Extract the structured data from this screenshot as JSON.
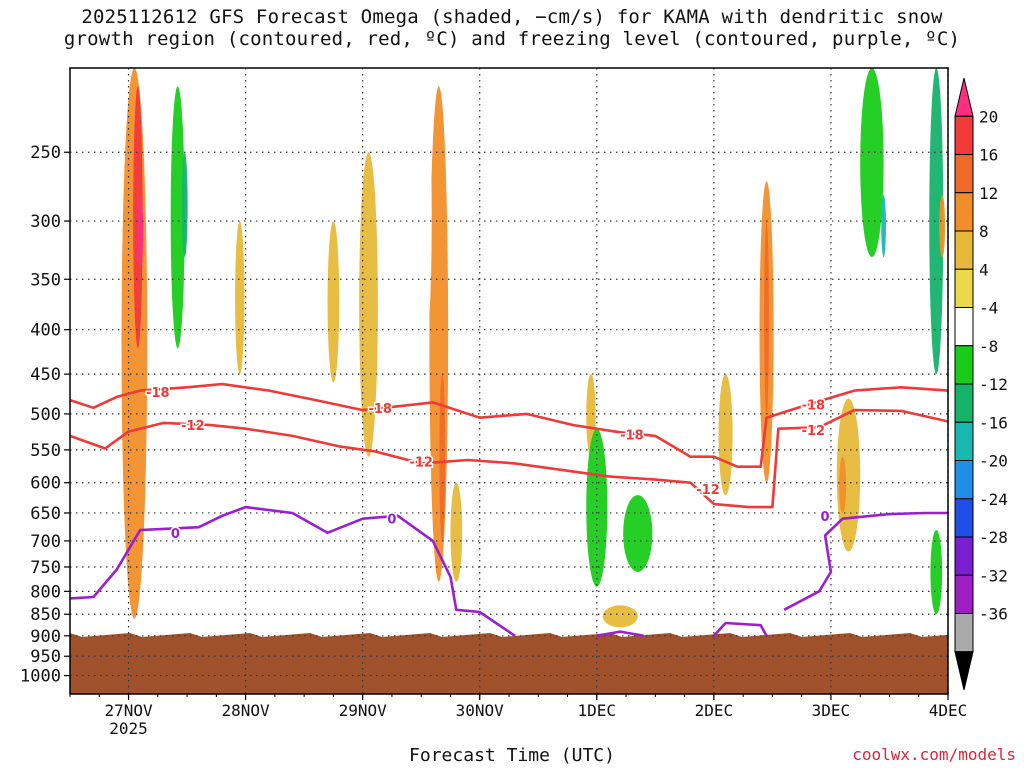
{
  "title": {
    "line1": "2025112612 GFS Forecast Omega (shaded, −cm/s) for KAMA with dendritic snow",
    "line2": "growth region (contoured, red, ºC) and freezing level (contoured, purple, ºC)"
  },
  "xlabel": "Forecast Time (UTC)",
  "credit": "coolwx.com/models",
  "chart_data": {
    "type": "heatmap",
    "xlabel": "Forecast Time (UTC)",
    "ylabel": "",
    "x_ticks": [
      {
        "label": "27NOV",
        "sub": "2025",
        "day": 1
      },
      {
        "label": "28NOV",
        "sub": "",
        "day": 2
      },
      {
        "label": "29NOV",
        "sub": "",
        "day": 3
      },
      {
        "label": "30NOV",
        "sub": "",
        "day": 4
      },
      {
        "label": "1DEC",
        "sub": "",
        "day": 5
      },
      {
        "label": "2DEC",
        "sub": "",
        "day": 6
      },
      {
        "label": "3DEC",
        "sub": "",
        "day": 7
      },
      {
        "label": "4DEC",
        "sub": "",
        "day": 8
      }
    ],
    "x_range_days": [
      0.5,
      8.0
    ],
    "y_ticks": [
      250,
      300,
      350,
      400,
      450,
      500,
      550,
      600,
      650,
      700,
      750,
      800,
      850,
      900,
      950,
      1000
    ],
    "y_range_hpa": [
      200,
      1050
    ],
    "y_scale": "log",
    "grid": "dotted",
    "colorbar": {
      "label_values": [
        20,
        16,
        12,
        8,
        4,
        -4,
        -8,
        -12,
        -16,
        -20,
        -24,
        -28,
        -32,
        -36
      ],
      "colors": [
        "#ff2f80",
        "#f23a3a",
        "#ef6a2a",
        "#f28e2a",
        "#e6b93a",
        "#ebd94a",
        "#ffffff",
        "#19cc19",
        "#15b36a",
        "#18b8b0",
        "#1e8fe6",
        "#1f4fe6",
        "#7a1fd0",
        "#9d1fc2",
        "#aaaaaa",
        "#000000"
      ]
    },
    "shading_regions": [
      {
        "x": 1.05,
        "p0": 200,
        "p1": 860,
        "w": 0.22,
        "value": 10
      },
      {
        "x": 1.08,
        "p0": 210,
        "p1": 420,
        "w": 0.08,
        "value": 18
      },
      {
        "x": 1.1,
        "p0": 280,
        "p1": 340,
        "w": 0.05,
        "value": 20
      },
      {
        "x": 0.85,
        "p0": 520,
        "p1": 830,
        "w": 0.12,
        "value": -6
      },
      {
        "x": 1.42,
        "p0": 210,
        "p1": 420,
        "w": 0.12,
        "value": -8
      },
      {
        "x": 1.48,
        "p0": 250,
        "p1": 330,
        "w": 0.05,
        "value": -14
      },
      {
        "x": 1.95,
        "p0": 300,
        "p1": 450,
        "w": 0.08,
        "value": 6
      },
      {
        "x": 2.3,
        "p0": 450,
        "p1": 560,
        "w": 0.08,
        "value": -6
      },
      {
        "x": 2.75,
        "p0": 300,
        "p1": 460,
        "w": 0.1,
        "value": 5
      },
      {
        "x": 2.9,
        "p0": 200,
        "p1": 360,
        "w": 0.08,
        "value": -6
      },
      {
        "x": 3.05,
        "p0": 250,
        "p1": 560,
        "w": 0.16,
        "value": 8
      },
      {
        "x": 3.35,
        "p0": 210,
        "p1": 600,
        "w": 0.1,
        "value": -6
      },
      {
        "x": 3.65,
        "p0": 210,
        "p1": 780,
        "w": 0.16,
        "value": 9
      },
      {
        "x": 3.68,
        "p0": 450,
        "p1": 700,
        "w": 0.05,
        "value": 16
      },
      {
        "x": 3.8,
        "p0": 600,
        "p1": 780,
        "w": 0.1,
        "value": 7
      },
      {
        "x": 3.55,
        "p0": 220,
        "p1": 400,
        "w": 0.08,
        "value": -6
      },
      {
        "x": 4.2,
        "p0": 400,
        "p1": 520,
        "w": 0.08,
        "value": -6
      },
      {
        "x": 4.6,
        "p0": 300,
        "p1": 560,
        "w": 0.06,
        "value": -6
      },
      {
        "x": 4.85,
        "p0": 200,
        "p1": 620,
        "w": 0.12,
        "value": -6
      },
      {
        "x": 4.95,
        "p0": 450,
        "p1": 560,
        "w": 0.08,
        "value": 6
      },
      {
        "x": 5.0,
        "p0": 520,
        "p1": 790,
        "w": 0.18,
        "value": -11
      },
      {
        "x": 5.35,
        "p0": 620,
        "p1": 760,
        "w": 0.25,
        "value": -9
      },
      {
        "x": 5.3,
        "p0": 200,
        "p1": 480,
        "w": 0.1,
        "value": -7
      },
      {
        "x": 5.55,
        "p0": 200,
        "p1": 420,
        "w": 0.08,
        "value": -7
      },
      {
        "x": 5.2,
        "p0": 830,
        "p1": 880,
        "w": 0.3,
        "value": 6
      },
      {
        "x": 6.1,
        "p0": 450,
        "p1": 620,
        "w": 0.12,
        "value": 6
      },
      {
        "x": 6.45,
        "p0": 270,
        "p1": 600,
        "w": 0.12,
        "value": 9
      },
      {
        "x": 6.45,
        "p0": 300,
        "p1": 500,
        "w": 0.04,
        "value": 13
      },
      {
        "x": 7.15,
        "p0": 480,
        "p1": 720,
        "w": 0.2,
        "value": 8
      },
      {
        "x": 7.1,
        "p0": 560,
        "p1": 650,
        "w": 0.06,
        "value": 12
      },
      {
        "x": 7.35,
        "p0": 200,
        "p1": 330,
        "w": 0.2,
        "value": -10
      },
      {
        "x": 7.45,
        "p0": 280,
        "p1": 330,
        "w": 0.04,
        "value": -18
      },
      {
        "x": 7.75,
        "p0": 380,
        "p1": 540,
        "w": 0.12,
        "value": -6
      },
      {
        "x": 7.9,
        "p0": 200,
        "p1": 450,
        "w": 0.12,
        "value": -12
      },
      {
        "x": 7.95,
        "p0": 280,
        "p1": 330,
        "w": 0.05,
        "value": 12
      },
      {
        "x": 7.9,
        "p0": 680,
        "p1": 850,
        "w": 0.1,
        "value": -10
      }
    ],
    "contours": [
      {
        "label": "-18",
        "color": "#ef3a3a",
        "points": [
          [
            0.5,
            482
          ],
          [
            0.7,
            492
          ],
          [
            0.9,
            478
          ],
          [
            1.1,
            470
          ],
          [
            1.5,
            466
          ],
          [
            1.8,
            462
          ],
          [
            2.2,
            470
          ],
          [
            2.6,
            482
          ],
          [
            3.0,
            495
          ],
          [
            3.3,
            490
          ],
          [
            3.6,
            485
          ],
          [
            4.0,
            505
          ],
          [
            4.4,
            500
          ],
          [
            4.8,
            515
          ],
          [
            5.2,
            525
          ],
          [
            5.5,
            530
          ],
          [
            5.8,
            560
          ],
          [
            6.0,
            560
          ],
          [
            6.2,
            575
          ],
          [
            6.4,
            575
          ],
          [
            6.45,
            505
          ],
          [
            6.8,
            488
          ],
          [
            7.2,
            470
          ],
          [
            7.6,
            466
          ],
          [
            8.0,
            470
          ]
        ]
      },
      {
        "label": "-12",
        "color": "#ef3a3a",
        "points": [
          [
            0.5,
            530
          ],
          [
            0.8,
            548
          ],
          [
            1.0,
            524
          ],
          [
            1.3,
            512
          ],
          [
            1.7,
            515
          ],
          [
            2.0,
            520
          ],
          [
            2.4,
            530
          ],
          [
            2.8,
            545
          ],
          [
            3.1,
            552
          ],
          [
            3.5,
            570
          ],
          [
            3.9,
            565
          ],
          [
            4.3,
            570
          ],
          [
            4.7,
            580
          ],
          [
            5.1,
            590
          ],
          [
            5.5,
            595
          ],
          [
            5.8,
            600
          ],
          [
            6.0,
            635
          ],
          [
            6.3,
            640
          ],
          [
            6.5,
            640
          ],
          [
            6.55,
            520
          ],
          [
            6.9,
            518
          ],
          [
            7.2,
            495
          ],
          [
            7.6,
            496
          ],
          [
            8.0,
            510
          ]
        ]
      },
      {
        "label": "0",
        "color": "#9a1fd0",
        "points": [
          [
            0.5,
            815
          ],
          [
            0.7,
            812
          ],
          [
            0.9,
            755
          ],
          [
            1.1,
            680
          ],
          [
            1.3,
            678
          ],
          [
            1.6,
            675
          ],
          [
            1.8,
            655
          ],
          [
            2.0,
            640
          ],
          [
            2.4,
            650
          ],
          [
            2.7,
            685
          ],
          [
            3.0,
            660
          ],
          [
            3.3,
            655
          ],
          [
            3.6,
            700
          ],
          [
            3.75,
            770
          ],
          [
            3.8,
            840
          ],
          [
            4.0,
            845
          ],
          [
            4.3,
            900
          ]
        ]
      },
      {
        "label": "",
        "color": "#9a1fd0",
        "points": [
          [
            5.0,
            900
          ],
          [
            5.2,
            890
          ],
          [
            5.4,
            900
          ]
        ]
      },
      {
        "label": "",
        "color": "#9a1fd0",
        "points": [
          [
            6.0,
            900
          ],
          [
            6.1,
            870
          ],
          [
            6.4,
            875
          ],
          [
            6.45,
            900
          ]
        ]
      },
      {
        "label": "",
        "color": "#9a1fd0",
        "points": [
          [
            6.6,
            840
          ],
          [
            6.9,
            800
          ],
          [
            7.0,
            760
          ],
          [
            6.95,
            690
          ],
          [
            7.1,
            660
          ],
          [
            7.5,
            652
          ],
          [
            7.8,
            650
          ],
          [
            8.0,
            650
          ]
        ]
      }
    ],
    "contour_label_positions": [
      {
        "text": "-18",
        "x": 1.25,
        "p": 472
      },
      {
        "text": "-12",
        "x": 1.55,
        "p": 515
      },
      {
        "text": "-18",
        "x": 3.15,
        "p": 492
      },
      {
        "text": "-12",
        "x": 3.5,
        "p": 567
      },
      {
        "text": "-18",
        "x": 5.3,
        "p": 528
      },
      {
        "text": "-12",
        "x": 5.95,
        "p": 610
      },
      {
        "text": "-18",
        "x": 6.85,
        "p": 488
      },
      {
        "text": "-12",
        "x": 6.85,
        "p": 522
      },
      {
        "text": "0",
        "x": 1.4,
        "p": 685
      },
      {
        "text": "0",
        "x": 3.25,
        "p": 660
      },
      {
        "text": "0",
        "x": 6.95,
        "p": 655
      }
    ],
    "terrain": {
      "surface_hpa": 898,
      "color": "#a0522d"
    }
  }
}
